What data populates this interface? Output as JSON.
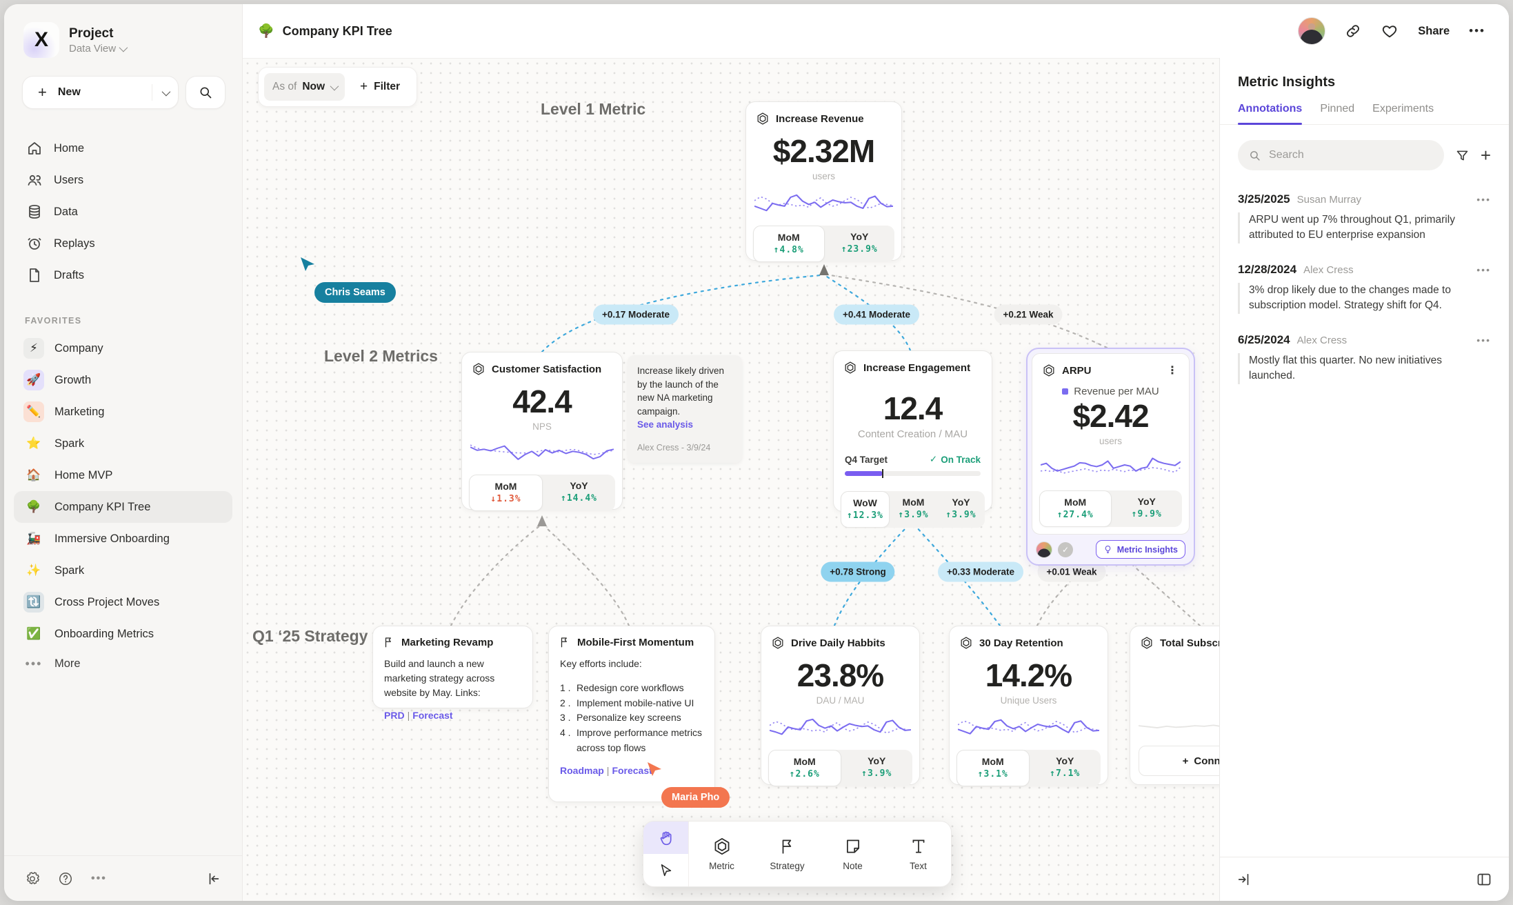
{
  "sidebar": {
    "project_title": "Project",
    "project_subtitle": "Data View",
    "new_label": "New",
    "nav": [
      {
        "icon": "home-icon",
        "label": "Home"
      },
      {
        "icon": "users-icon",
        "label": "Users"
      },
      {
        "icon": "database-icon",
        "label": "Data"
      },
      {
        "icon": "replay-icon",
        "label": "Replays"
      },
      {
        "icon": "draft-icon",
        "label": "Drafts"
      }
    ],
    "favorites_label": "FAVORITES",
    "favorites": [
      {
        "emoji": "⚡",
        "bg": "#ececea",
        "label": "Company",
        "selected": false
      },
      {
        "emoji": "🚀",
        "bg": "#e4e0fb",
        "label": "Growth",
        "selected": false
      },
      {
        "emoji": "✏️",
        "bg": "#fbe0d4",
        "label": "Marketing",
        "selected": false
      },
      {
        "emoji": "⭐",
        "bg": "transparent",
        "label": "Spark",
        "selected": false
      },
      {
        "emoji": "🏠",
        "bg": "transparent",
        "label": "Home MVP",
        "selected": false
      },
      {
        "emoji": "🌳",
        "bg": "transparent",
        "label": "Company KPI Tree",
        "selected": true
      },
      {
        "emoji": "🚂",
        "bg": "transparent",
        "label": "Immersive Onboarding",
        "selected": false
      },
      {
        "emoji": "✨",
        "bg": "transparent",
        "label": "Spark",
        "selected": false
      },
      {
        "emoji": "🔃",
        "bg": "#dfe5e8",
        "label": "Cross Project Moves",
        "selected": false
      },
      {
        "emoji": "✅",
        "bg": "transparent",
        "label": "Onboarding Metrics",
        "selected": false
      }
    ],
    "more_label": "More"
  },
  "topbar": {
    "emoji": "🌳",
    "title": "Company KPI Tree",
    "share_label": "Share"
  },
  "canvas": {
    "asof_label": "As of",
    "asof_value": "Now",
    "filter_label": "Filter",
    "level1_label": "Level 1 Metric",
    "level2_label": "Level 2 Metrics",
    "strategy_label": "Q1 ‘25 Strategy",
    "edges": [
      {
        "label": "+0.17 Moderate",
        "strength": "moderate"
      },
      {
        "label": "+0.41 Moderate",
        "strength": "moderate"
      },
      {
        "label": "+0.21 Weak",
        "strength": "weak"
      },
      {
        "label": "+0.78 Strong",
        "strength": "strong"
      },
      {
        "label": "+0.33 Moderate",
        "strength": "moderate"
      },
      {
        "label": "+0.01 Weak",
        "strength": "weak"
      }
    ],
    "cursors": [
      {
        "name": "Chris Seams",
        "color": "#17809f"
      },
      {
        "name": "Maria Pho",
        "color": "#f3764f"
      }
    ]
  },
  "cards": {
    "revenue": {
      "title": "Increase Revenue",
      "value": "$2.32M",
      "unit": "users",
      "stats": [
        {
          "label": "MoM",
          "delta": "4.8%",
          "dir": "up",
          "active": true
        },
        {
          "label": "YoY",
          "delta": "23.9%",
          "dir": "up",
          "active": false
        }
      ],
      "spark": {
        "solid": [
          30,
          22,
          14,
          40,
          34,
          30,
          62,
          70,
          48,
          36,
          44,
          26,
          40,
          52,
          46,
          42,
          44,
          30,
          22,
          58,
          66,
          40,
          28,
          30
        ],
        "dotted": [
          50,
          64,
          56,
          40,
          34,
          40,
          36,
          30,
          34,
          26,
          48,
          60,
          40,
          30,
          36,
          50,
          62,
          54,
          38,
          22,
          30,
          40,
          36,
          32
        ]
      }
    },
    "csat": {
      "title": "Customer Satisfaction",
      "value": "42.4",
      "unit": "NPS",
      "stats": [
        {
          "label": "MoM",
          "delta": "1.3%",
          "dir": "down",
          "active": true
        },
        {
          "label": "YoY",
          "delta": "14.4%",
          "dir": "up",
          "active": false
        }
      ],
      "spark": {
        "solid": [
          62,
          50,
          54,
          48,
          58,
          66,
          40,
          16,
          34,
          46,
          28,
          52,
          40,
          50,
          38,
          46,
          42,
          34,
          18,
          26,
          48,
          54
        ],
        "dotted": [
          70,
          58,
          52,
          50,
          46,
          44,
          42,
          40,
          40,
          42,
          46,
          52,
          48,
          44,
          50,
          54,
          48,
          40,
          34,
          38,
          44,
          50
        ]
      }
    },
    "note": {
      "text": "Increase likely driven by the launch of the new NA marketing campaign.",
      "link": "See analysis",
      "author": "Alex Cress - 3/9/24"
    },
    "engagement": {
      "title": "Increase Engagement",
      "value": "12.4",
      "unit": "Content Creation / MAU",
      "target_label": "Q4 Target",
      "target_status": "On Track",
      "progress": 28,
      "stats": [
        {
          "label": "WoW",
          "delta": "12.3%",
          "dir": "up",
          "active": true
        },
        {
          "label": "MoM",
          "delta": "3.9%",
          "dir": "up",
          "active": false
        },
        {
          "label": "YoY",
          "delta": "3.9%",
          "dir": "up",
          "active": false
        }
      ]
    },
    "arpu": {
      "title": "ARPU",
      "legend": "Revenue per MAU",
      "value": "$2.42",
      "unit": "users",
      "badge": "Metric Insights",
      "stats": [
        {
          "label": "MoM",
          "delta": "27.4%",
          "dir": "up",
          "active": true
        },
        {
          "label": "YoY",
          "delta": "9.9%",
          "dir": "up",
          "active": false
        }
      ],
      "spark": {
        "solid": [
          52,
          58,
          40,
          30,
          36,
          42,
          48,
          60,
          58,
          50,
          46,
          52,
          66,
          40,
          46,
          52,
          48,
          30,
          40,
          44,
          76,
          64,
          58,
          54,
          50,
          64
        ],
        "dotted": [
          30,
          32,
          28,
          34,
          22,
          26,
          30,
          34,
          38,
          32,
          28,
          34,
          30,
          36,
          32,
          28,
          34,
          30,
          34,
          38,
          42,
          40,
          36,
          30,
          26,
          44
        ]
      }
    },
    "marketing_revamp": {
      "title": "Marketing Revamp",
      "body": "Build and launch a new marketing strategy across website by May. Links:",
      "links": [
        "PRD",
        "Forecast"
      ]
    },
    "mobile_first": {
      "title": "Mobile-First Momentum",
      "intro": "Key efforts include:",
      "items": [
        "Redesign core workflows",
        "Implement mobile-native UI",
        "Personalize key screens",
        "Improve performance metrics across top flows"
      ],
      "links": [
        "Roadmap",
        "Forecast"
      ]
    },
    "daily_habits": {
      "title": "Drive Daily Habbits",
      "value": "23.8%",
      "unit": "DAU / MAU",
      "stats": [
        {
          "label": "MoM",
          "delta": "2.6%",
          "dir": "up",
          "active": true
        },
        {
          "label": "YoY",
          "delta": "3.9%",
          "dir": "up",
          "active": false
        }
      ],
      "spark": {
        "solid": [
          30,
          24,
          16,
          42,
          36,
          32,
          64,
          70,
          48,
          38,
          46,
          28,
          42,
          54,
          48,
          44,
          46,
          32,
          24,
          60,
          66,
          42,
          30,
          32
        ],
        "dotted": [
          48,
          62,
          54,
          38,
          32,
          38,
          34,
          28,
          32,
          24,
          46,
          58,
          38,
          28,
          34,
          48,
          60,
          52,
          36,
          20,
          28,
          38,
          34,
          30
        ]
      }
    },
    "retention": {
      "title": "30 Day Retention",
      "value": "14.2%",
      "unit": "Unique Users",
      "stats": [
        {
          "label": "MoM",
          "delta": "3.1%",
          "dir": "up",
          "active": true
        },
        {
          "label": "YoY",
          "delta": "7.1%",
          "dir": "up",
          "active": false
        }
      ],
      "spark": {
        "solid": [
          34,
          26,
          18,
          44,
          38,
          34,
          62,
          68,
          46,
          36,
          44,
          26,
          40,
          52,
          46,
          42,
          48,
          34,
          22,
          58,
          64,
          40,
          28,
          30
        ],
        "dotted": [
          50,
          64,
          56,
          40,
          34,
          40,
          36,
          30,
          34,
          26,
          48,
          58,
          38,
          28,
          34,
          48,
          62,
          54,
          38,
          22,
          30,
          40,
          34,
          30
        ]
      }
    },
    "total_sub": {
      "title": "Total Subscript",
      "connect_label": "Connect",
      "spark": {
        "solid": [
          30,
          26,
          22,
          28,
          24,
          26,
          30,
          28,
          32,
          26,
          30,
          34,
          28,
          44,
          30,
          26
        ]
      }
    }
  },
  "toolbar": {
    "tools": [
      {
        "name": "hand",
        "label": ""
      },
      {
        "name": "select",
        "label": ""
      },
      {
        "name": "metric",
        "label": "Metric"
      },
      {
        "name": "strategy",
        "label": "Strategy"
      },
      {
        "name": "note",
        "label": "Note"
      },
      {
        "name": "text",
        "label": "Text"
      }
    ]
  },
  "insights": {
    "title": "Metric Insights",
    "tabs": [
      {
        "label": "Annotations",
        "active": true
      },
      {
        "label": "Pinned",
        "active": false
      },
      {
        "label": "Experiments",
        "active": false
      }
    ],
    "search_placeholder": "Search",
    "annotations": [
      {
        "date": "3/25/2025",
        "author": "Susan Murray",
        "text": "ARPU went up 7% throughout Q1, primarily attributed to EU enterprise expansion"
      },
      {
        "date": "12/28/2024",
        "author": "Alex Cress",
        "text": "3% drop likely due to the changes made to subscription model. Strategy shift for Q4."
      },
      {
        "date": "6/25/2024",
        "author": "Alex Cress",
        "text": "Mostly flat this quarter. No new initiatives launched."
      }
    ]
  },
  "colors": {
    "accent_purple": "#7b6cf0",
    "edge_blue": "#3da8dc",
    "positive_green": "#1b9e78",
    "negative_red": "#e05a3c"
  }
}
